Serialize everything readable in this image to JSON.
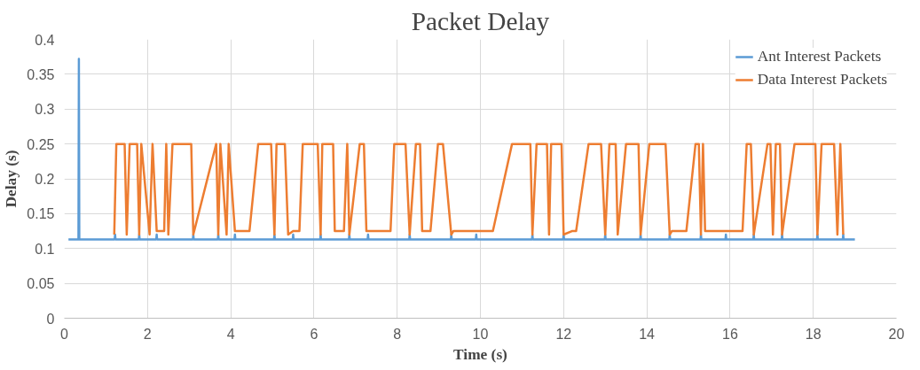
{
  "chart_data": {
    "type": "line",
    "title": "Packet Delay",
    "xlabel": "Time (s)",
    "ylabel": "Delay (s)",
    "xlim": [
      0,
      20
    ],
    "xticks": [
      0,
      2,
      4,
      6,
      8,
      10,
      12,
      14,
      16,
      18,
      20
    ],
    "ylim": [
      0,
      0.4
    ],
    "yticks": [
      0,
      0.05,
      0.1,
      0.15,
      0.2,
      0.25,
      0.3,
      0.35,
      0.4
    ],
    "grid": true,
    "legend": "top right",
    "marker": "none",
    "line_style": "solid",
    "series": [
      {
        "name": "Ant Interest Packets",
        "color": "#5b9bd5",
        "x": [
          0.1,
          0.34,
          0.35,
          0.36,
          1.21,
          1.22,
          1.23,
          1.79,
          1.8,
          1.81,
          2.21,
          2.22,
          2.23,
          3.09,
          3.1,
          3.11,
          3.69,
          3.7,
          3.71,
          4.09,
          4.1,
          4.11,
          5.04,
          5.05,
          5.06,
          5.49,
          5.5,
          5.51,
          6.15,
          6.16,
          6.17,
          6.84,
          6.85,
          6.86,
          7.29,
          7.3,
          7.31,
          8.29,
          8.3,
          8.31,
          9.29,
          9.3,
          9.31,
          9.89,
          9.9,
          9.91,
          11.24,
          11.25,
          11.26,
          11.99,
          12.0,
          12.01,
          12.99,
          13.0,
          13.01,
          13.84,
          13.85,
          13.86,
          14.54,
          14.55,
          14.56,
          15.29,
          15.3,
          15.31,
          15.89,
          15.9,
          15.91,
          16.56,
          16.57,
          16.58,
          17.24,
          17.25,
          17.26,
          18.09,
          18.1,
          18.11,
          18.71,
          18.72,
          18.73,
          19.0
        ],
        "values": [
          0.113,
          0.113,
          0.372,
          0.113,
          0.113,
          0.12,
          0.113,
          0.113,
          0.12,
          0.113,
          0.113,
          0.12,
          0.113,
          0.113,
          0.12,
          0.113,
          0.113,
          0.12,
          0.113,
          0.113,
          0.12,
          0.113,
          0.113,
          0.12,
          0.113,
          0.113,
          0.12,
          0.113,
          0.113,
          0.12,
          0.113,
          0.113,
          0.12,
          0.113,
          0.113,
          0.12,
          0.113,
          0.113,
          0.12,
          0.113,
          0.113,
          0.12,
          0.113,
          0.113,
          0.12,
          0.113,
          0.113,
          0.12,
          0.113,
          0.113,
          0.12,
          0.113,
          0.113,
          0.12,
          0.113,
          0.113,
          0.12,
          0.113,
          0.113,
          0.12,
          0.113,
          0.113,
          0.12,
          0.113,
          0.113,
          0.12,
          0.113,
          0.113,
          0.12,
          0.113,
          0.113,
          0.12,
          0.113,
          0.113,
          0.12,
          0.113,
          0.113,
          0.12,
          0.113,
          0.113
        ]
      },
      {
        "name": "Data Interest Packets",
        "color": "#ed7d31",
        "x": [
          1.2,
          1.25,
          1.45,
          1.5,
          1.57,
          1.75,
          1.8,
          1.85,
          2.05,
          2.12,
          2.22,
          2.4,
          2.45,
          2.5,
          2.6,
          3.05,
          3.1,
          3.65,
          3.7,
          3.75,
          3.9,
          3.95,
          4.1,
          4.45,
          4.66,
          4.97,
          5.05,
          5.1,
          5.3,
          5.38,
          5.5,
          5.65,
          5.73,
          6.09,
          6.16,
          6.2,
          6.46,
          6.5,
          6.72,
          6.8,
          6.85,
          7.1,
          7.2,
          7.26,
          7.84,
          7.93,
          8.2,
          8.3,
          8.45,
          8.55,
          8.6,
          8.8,
          8.98,
          9.1,
          9.3,
          9.35,
          10.3,
          10.76,
          11.2,
          11.25,
          11.35,
          11.6,
          11.65,
          11.7,
          11.95,
          12.0,
          12.2,
          12.3,
          12.6,
          12.9,
          13.0,
          13.1,
          13.25,
          13.3,
          13.5,
          13.8,
          13.85,
          14.06,
          14.45,
          14.55,
          14.6,
          14.95,
          15.17,
          15.25,
          15.3,
          15.35,
          15.4,
          16.3,
          16.4,
          16.5,
          16.57,
          16.9,
          16.97,
          17.03,
          17.1,
          17.2,
          17.25,
          17.55,
          18.05,
          18.1,
          18.2,
          18.5,
          18.58,
          18.65,
          18.72
        ],
        "values": [
          0.12,
          0.25,
          0.25,
          0.12,
          0.25,
          0.25,
          0.12,
          0.25,
          0.12,
          0.25,
          0.125,
          0.125,
          0.25,
          0.12,
          0.25,
          0.25,
          0.12,
          0.25,
          0.12,
          0.25,
          0.12,
          0.25,
          0.125,
          0.125,
          0.25,
          0.25,
          0.12,
          0.25,
          0.25,
          0.12,
          0.125,
          0.125,
          0.25,
          0.25,
          0.12,
          0.25,
          0.25,
          0.125,
          0.125,
          0.25,
          0.12,
          0.25,
          0.25,
          0.125,
          0.125,
          0.25,
          0.25,
          0.12,
          0.25,
          0.25,
          0.125,
          0.125,
          0.25,
          0.25,
          0.12,
          0.125,
          0.125,
          0.25,
          0.25,
          0.12,
          0.25,
          0.25,
          0.12,
          0.25,
          0.25,
          0.12,
          0.125,
          0.125,
          0.25,
          0.25,
          0.12,
          0.25,
          0.25,
          0.12,
          0.25,
          0.25,
          0.12,
          0.25,
          0.25,
          0.12,
          0.125,
          0.125,
          0.25,
          0.25,
          0.12,
          0.25,
          0.125,
          0.125,
          0.25,
          0.25,
          0.12,
          0.25,
          0.25,
          0.12,
          0.25,
          0.25,
          0.12,
          0.25,
          0.25,
          0.12,
          0.25,
          0.25,
          0.12,
          0.25,
          0.12
        ]
      }
    ]
  }
}
